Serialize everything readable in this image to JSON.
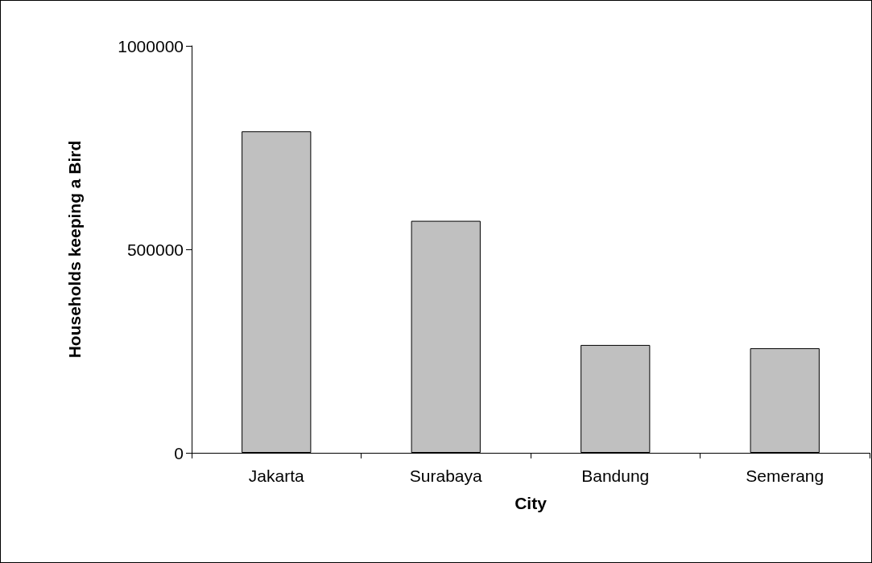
{
  "chart_data": {
    "type": "bar",
    "xlabel": "City",
    "ylabel": "Households keeping a Bird",
    "categories": [
      "Jakarta",
      "Surabaya",
      "Bandung",
      "Semerang"
    ],
    "values": [
      790000,
      570000,
      265000,
      257000
    ],
    "color": "#c0c0c0",
    "ylim": [
      0,
      1000000
    ],
    "yticks": [
      0,
      500000,
      1000000
    ],
    "grid": false
  }
}
